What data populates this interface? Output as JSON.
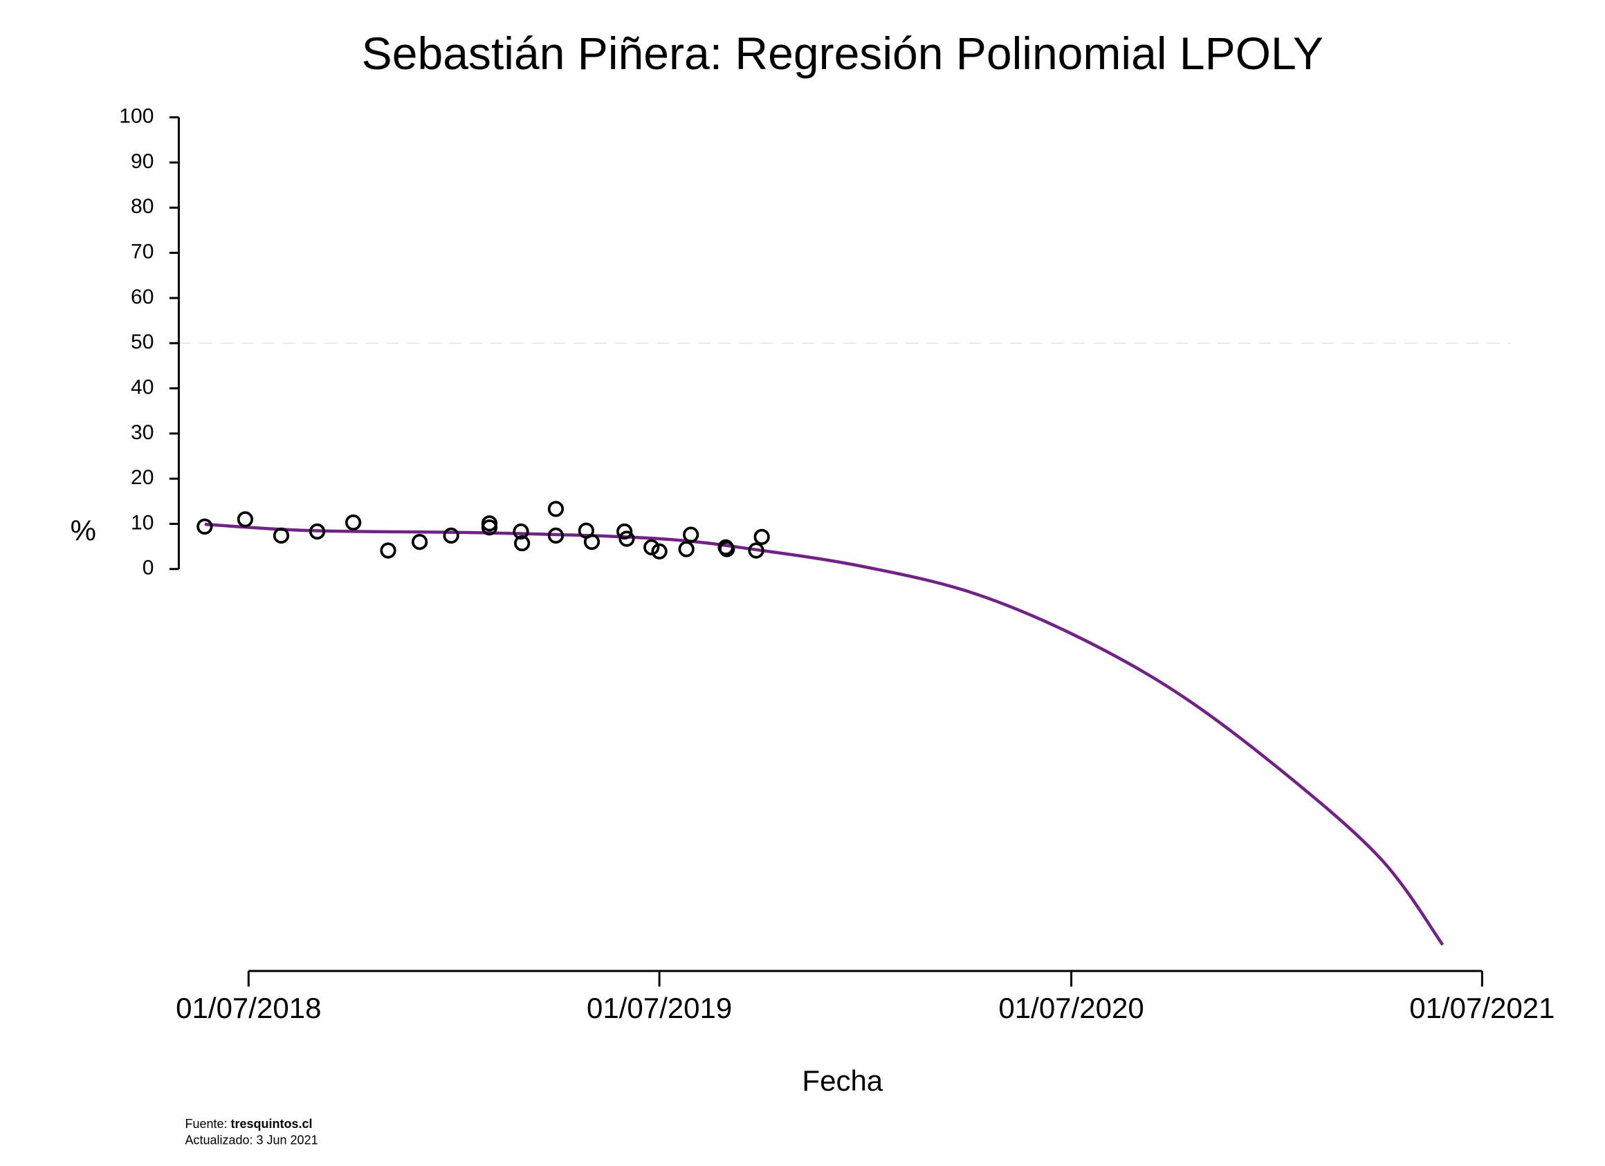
{
  "chart_data": {
    "type": "scatter",
    "title": "Sebastián Piñera: Regresión Polinomial LPOLY",
    "ylabel": "%",
    "xlabel": "Fecha",
    "xlim": [
      "2018-04-30",
      "2021-07-27"
    ],
    "xticks": [
      {
        "value": "2018-07-01",
        "label": "01/07/2018"
      },
      {
        "value": "2019-07-01",
        "label": "01/07/2019"
      },
      {
        "value": "2020-07-01",
        "label": "01/07/2020"
      },
      {
        "value": "2021-07-01",
        "label": "01/07/2021"
      }
    ],
    "ylim": [
      -89,
      100
    ],
    "yticks": [
      0,
      10,
      20,
      30,
      40,
      50,
      60,
      70,
      80,
      90,
      100
    ],
    "reference_line": 50,
    "series": [
      {
        "type": "scatter",
        "color": "#000000",
        "x": [
          "2018-05-23",
          "2018-06-28",
          "2018-07-30",
          "2018-08-31",
          "2018-10-02",
          "2018-11-02",
          "2018-11-30",
          "2018-12-28",
          "2019-01-31",
          "2019-01-31",
          "2019-02-28",
          "2019-03-01",
          "2019-03-31",
          "2019-03-31",
          "2019-04-27",
          "2019-05-02",
          "2019-05-31",
          "2019-06-02",
          "2019-06-24",
          "2019-07-01",
          "2019-07-25",
          "2019-07-29",
          "2019-08-29",
          "2019-08-30",
          "2019-09-25",
          "2019-09-30"
        ],
        "values": [
          9.4,
          11.0,
          7.4,
          8.3,
          10.3,
          4.1,
          6.0,
          7.4,
          10.1,
          9.2,
          8.3,
          5.7,
          13.3,
          7.4,
          8.5,
          6.0,
          8.3,
          6.7,
          4.8,
          3.9,
          4.4,
          7.6,
          4.8,
          4.4,
          4.1,
          7.1
        ]
      },
      {
        "type": "line",
        "color": "#74208a",
        "x": [
          "2018-05-23",
          "2018-08-26",
          "2019-01-30",
          "2019-07-01",
          "2019-09-30",
          "2019-12-30",
          "2020-04-02",
          "2020-07-01",
          "2020-09-30",
          "2020-12-30",
          "2021-04-01",
          "2021-05-27"
        ],
        "values": [
          9.9,
          8.5,
          8.0,
          6.7,
          4.1,
          0.5,
          -5.1,
          -14.3,
          -26.9,
          -43.7,
          -63.9,
          -83.2
        ]
      }
    ]
  },
  "footer": {
    "source_label": "Fuente:",
    "source": "tresquintos.cl",
    "updated": "Actualizado: 3 Jun 2021"
  }
}
